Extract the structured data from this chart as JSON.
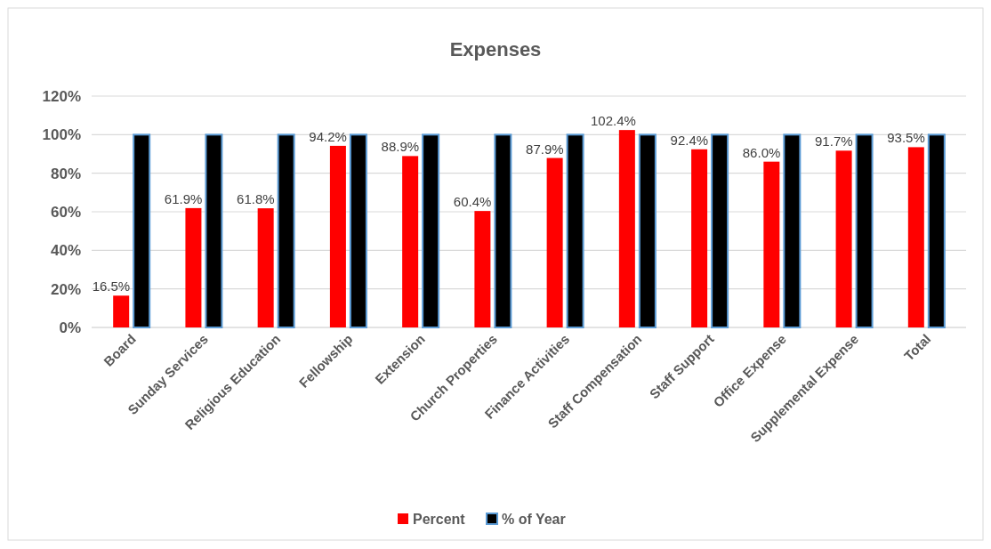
{
  "chart_data": {
    "type": "bar",
    "title": "Expenses",
    "categories": [
      "Board",
      "Sunday Services",
      "Religious Education",
      "Fellowship",
      "Extension",
      "Church Properties",
      "Finance Activities",
      "Staff Compensation",
      "Staff Support",
      "Office Expense",
      "Supplemental Expense",
      "Total"
    ],
    "series": [
      {
        "name": "Percent",
        "color": "#ff0000",
        "values": [
          16.5,
          61.9,
          61.8,
          94.2,
          88.9,
          60.4,
          87.9,
          102.4,
          92.4,
          86.0,
          91.7,
          93.5
        ],
        "value_labels": [
          "16.5%",
          "61.9%",
          "61.8%",
          "94.2%",
          "88.9%",
          "60.4%",
          "87.9%",
          "102.4%",
          "92.4%",
          "86.0%",
          "91.7%",
          "93.5%"
        ]
      },
      {
        "name": "% of Year",
        "color": "#000000",
        "values": [
          100,
          100,
          100,
          100,
          100,
          100,
          100,
          100,
          100,
          100,
          100,
          100
        ]
      }
    ],
    "ylim": [
      0,
      120
    ],
    "yticks": [
      {
        "value": 0,
        "label": "0%"
      },
      {
        "value": 20,
        "label": "20%"
      },
      {
        "value": 40,
        "label": "40%"
      },
      {
        "value": 60,
        "label": "60%"
      },
      {
        "value": 80,
        "label": "80%"
      },
      {
        "value": 100,
        "label": "100%"
      },
      {
        "value": 120,
        "label": "120%"
      }
    ],
    "grid": "y",
    "legend": "bottom"
  }
}
